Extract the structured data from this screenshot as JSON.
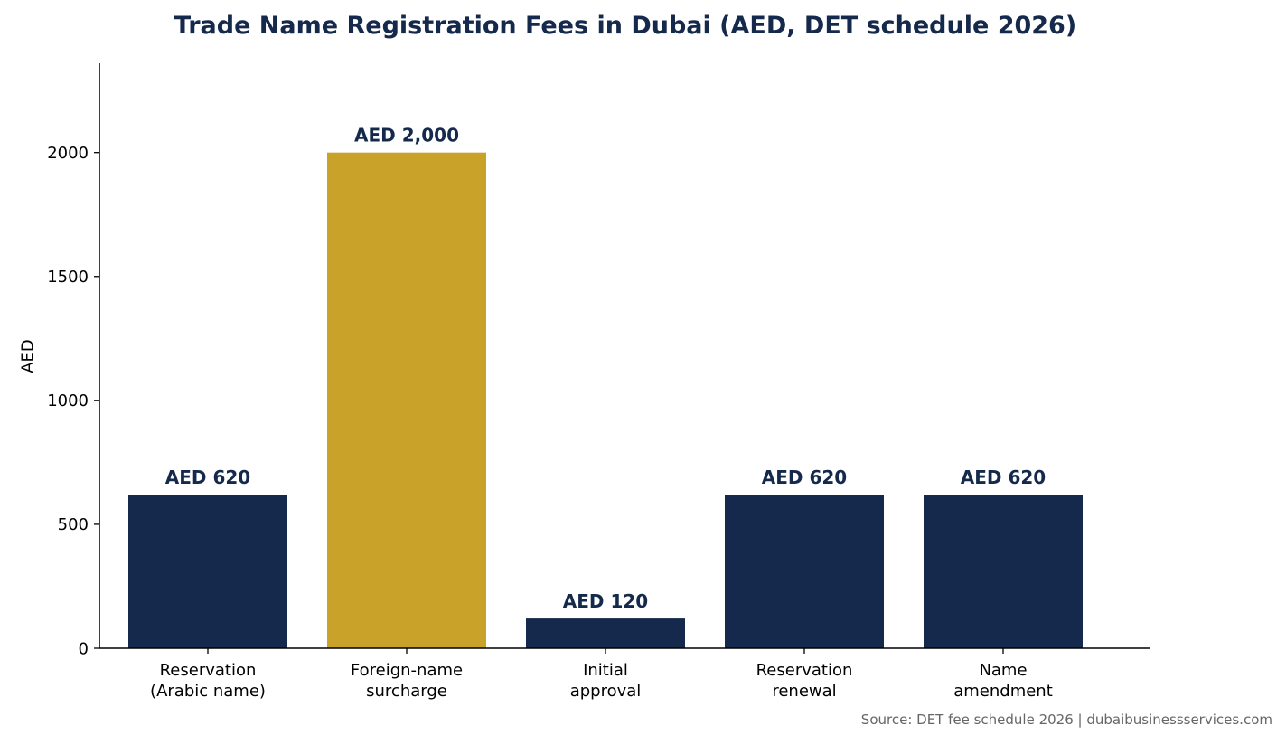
{
  "chart_data": {
    "type": "bar",
    "title": "Trade Name Registration Fees in Dubai (AED, DET schedule 2026)",
    "xlabel": "",
    "ylabel": "AED",
    "ylim": [
      0,
      2360
    ],
    "yticks": [
      "0",
      "500",
      "1000",
      "1500",
      "2000"
    ],
    "ytick_values": [
      0,
      500,
      1000,
      1500,
      2000
    ],
    "categories": [
      [
        "Reservation",
        "(Arabic name)"
      ],
      [
        "Foreign-name",
        "surcharge"
      ],
      [
        "Initial",
        "approval"
      ],
      [
        "Reservation",
        "renewal"
      ],
      [
        "Name",
        "amendment"
      ]
    ],
    "values": [
      620,
      2000,
      120,
      620,
      620
    ],
    "data_labels": [
      "AED 620",
      "AED 2,000",
      "AED 120",
      "AED 620",
      "AED 620"
    ],
    "bar_colors": [
      "#14294b",
      "#c9a229",
      "#14294b",
      "#14294b",
      "#14294b"
    ],
    "grid": false,
    "legend": "none",
    "source": "Source: DET fee schedule 2026 | dubaibusinessservices.com"
  },
  "colors": {
    "primary": "#14294b",
    "highlight": "#c9a229",
    "title": "#14294b",
    "source_text": "#666666"
  }
}
